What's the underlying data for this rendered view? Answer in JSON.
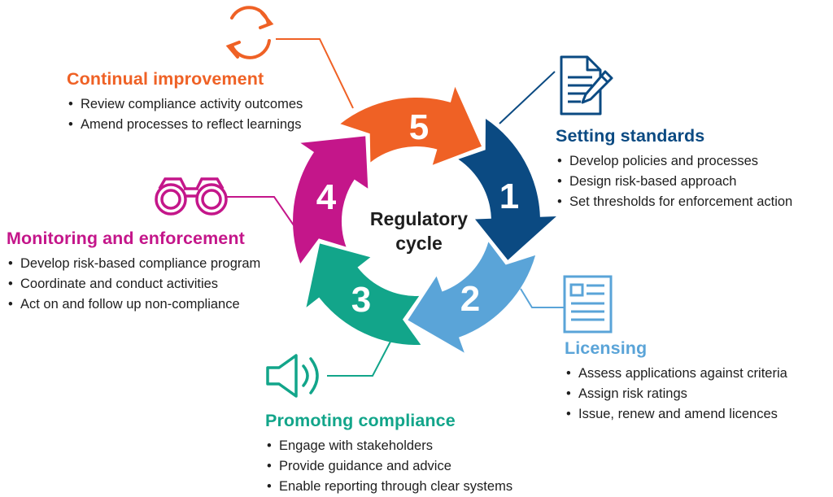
{
  "center": {
    "line1": "Regulatory",
    "line2": "cycle"
  },
  "colors": {
    "setting": "#0b4a82",
    "licensing": "#5aa4d8",
    "promoting": "#12a58a",
    "monitoring": "#c4168a",
    "improvement": "#ef6125"
  },
  "icons": {
    "stage1": "document-pen-icon",
    "stage2": "license-card-icon",
    "stage3": "speaker-icon",
    "stage4": "binoculars-icon",
    "stage5": "refresh-cycle-icon"
  },
  "stages": [
    {
      "number": "1",
      "title": "Setting standards",
      "items": [
        "Develop policies and processes",
        "Design risk-based approach",
        "Set thresholds for enforcement action"
      ]
    },
    {
      "number": "2",
      "title": "Licensing",
      "items": [
        "Assess applications against criteria",
        "Assign risk ratings",
        "Issue, renew and amend licences"
      ]
    },
    {
      "number": "3",
      "title": "Promoting compliance",
      "items": [
        "Engage with stakeholders",
        "Provide guidance and advice",
        "Enable reporting through clear systems"
      ]
    },
    {
      "number": "4",
      "title": "Monitoring and enforcement",
      "items": [
        "Develop risk-based compliance program",
        "Coordinate and conduct activities",
        "Act on and follow up non-compliance"
      ]
    },
    {
      "number": "5",
      "title": "Continual improvement",
      "items": [
        "Review compliance activity outcomes",
        "Amend processes to reflect learnings"
      ]
    }
  ]
}
